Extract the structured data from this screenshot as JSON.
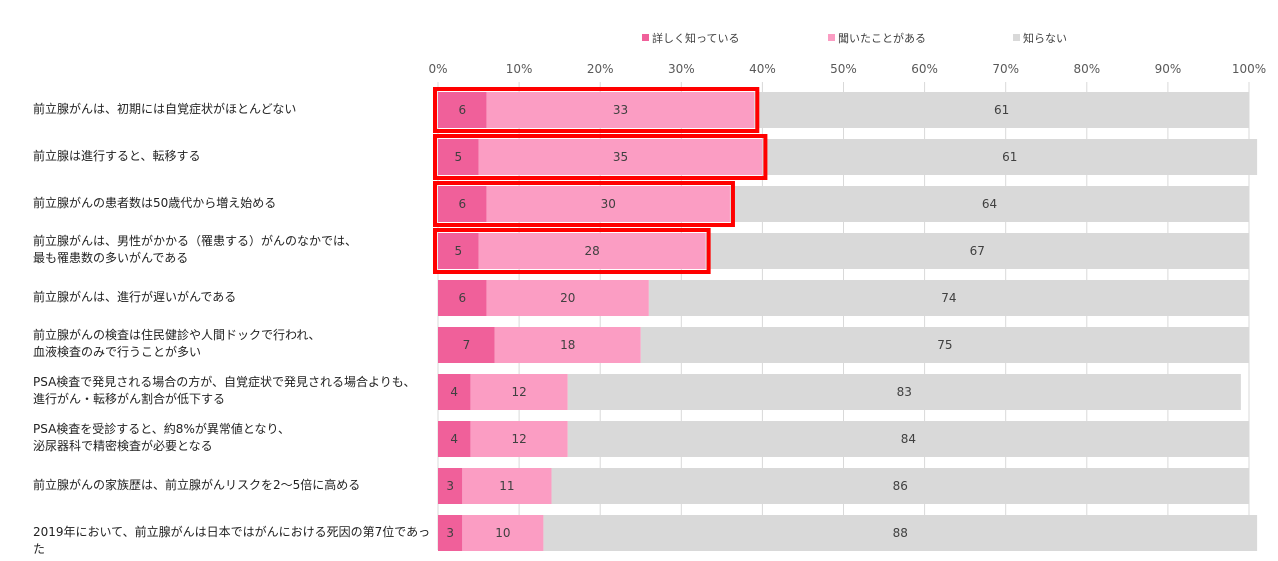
{
  "chart_data": {
    "type": "bar",
    "orientation": "horizontal",
    "stacked": "100%",
    "legend_position": "top",
    "grid": true,
    "xlim": [
      0,
      100
    ],
    "x_ticks": [
      "0%",
      "10%",
      "20%",
      "30%",
      "40%",
      "50%",
      "60%",
      "70%",
      "80%",
      "90%",
      "100%"
    ],
    "colors": {
      "detailed": "#f0609a",
      "heard": "#fb9dc3",
      "unknown": "#d9d9d9",
      "highlight": "#ff0000"
    },
    "categories": [
      "前立腺がんは、初期には自覚症状がほとんどない",
      "前立腺は進行すると、転移する",
      "前立腺がんの患者数は50歳代から増え始める",
      "前立腺がんは、男性がかかる（罹患する）がんのなかでは、\n最も罹患数の多いがんである",
      "前立腺がんは、進行が遅いがんである",
      "前立腺がんの検査は住民健診や人間ドックで行われ、\n血液検査のみで行うことが多い",
      "PSA検査で発見される場合の方が、自覚症状で発見される場合よりも、\n進行がん・転移がん割合が低下する",
      "PSA検査を受診すると、約8%が異常値となり、\n泌尿器科で精密検査が必要となる",
      "前立腺がんの家族歴は、前立腺がんリスクを2～5倍に高める",
      "2019年において、前立腺がんは日本ではがんにおける死因の第7位であった"
    ],
    "series": [
      {
        "name": "詳しく知っている",
        "values": [
          6,
          5,
          6,
          5,
          6,
          7,
          4,
          4,
          3,
          3
        ]
      },
      {
        "name": "聞いたことがある",
        "values": [
          33,
          35,
          30,
          28,
          20,
          18,
          12,
          12,
          11,
          10
        ]
      },
      {
        "name": "知らない",
        "values": [
          61,
          61,
          64,
          67,
          74,
          75,
          83,
          84,
          86,
          88
        ]
      }
    ],
    "highlighted_rows": [
      0,
      1,
      2,
      3
    ]
  }
}
